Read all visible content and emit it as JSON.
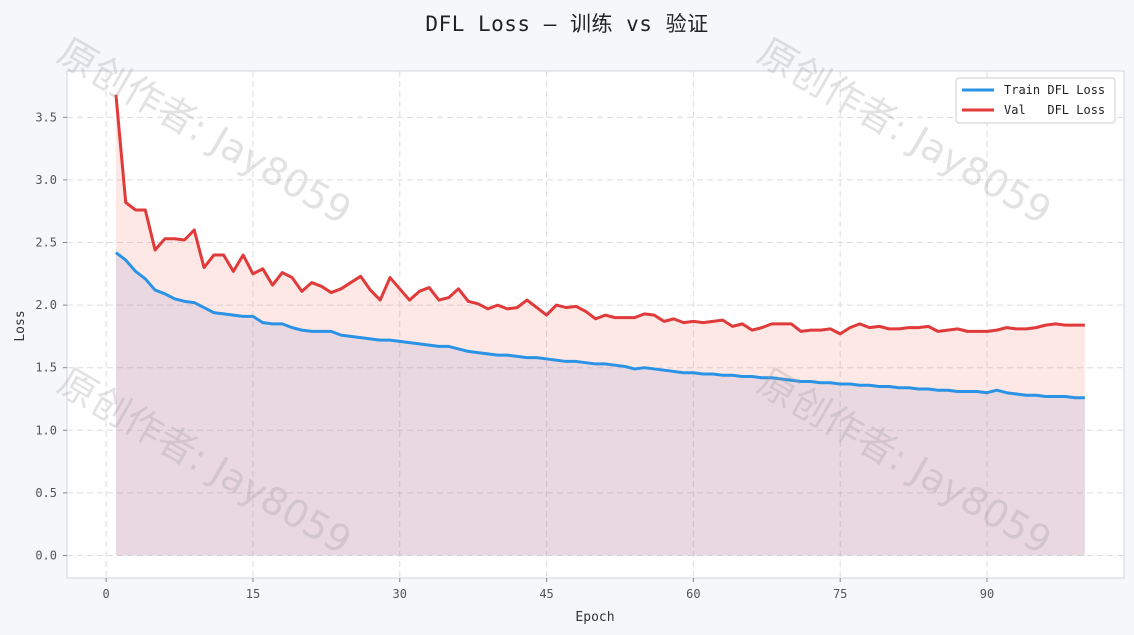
{
  "chart_data": {
    "type": "line",
    "title": "DFL Loss — 训练 vs 验证",
    "xlabel": "Epoch",
    "ylabel": "Loss",
    "xlim": [
      -4,
      104
    ],
    "ylim": [
      -0.18,
      3.87
    ],
    "xticks": [
      0,
      15,
      30,
      45,
      60,
      75,
      90
    ],
    "yticks": [
      0.0,
      0.5,
      1.0,
      1.5,
      2.0,
      2.5,
      3.0,
      3.5
    ],
    "grid": true,
    "legend_position": "top-right",
    "filled_to_zero": true,
    "x": [
      1,
      2,
      3,
      4,
      5,
      6,
      7,
      8,
      9,
      10,
      11,
      12,
      13,
      14,
      15,
      16,
      17,
      18,
      19,
      20,
      21,
      22,
      23,
      24,
      25,
      26,
      27,
      28,
      29,
      30,
      31,
      32,
      33,
      34,
      35,
      36,
      37,
      38,
      39,
      40,
      41,
      42,
      43,
      44,
      45,
      46,
      47,
      48,
      49,
      50,
      51,
      52,
      53,
      54,
      55,
      56,
      57,
      58,
      59,
      60,
      61,
      62,
      63,
      64,
      65,
      66,
      67,
      68,
      69,
      70,
      71,
      72,
      73,
      74,
      75,
      76,
      77,
      78,
      79,
      80,
      81,
      82,
      83,
      84,
      85,
      86,
      87,
      88,
      89,
      90,
      91,
      92,
      93,
      94,
      95,
      96,
      97,
      98,
      99,
      100
    ],
    "series": [
      {
        "name": "Train DFL Loss",
        "color": "#2b93e6",
        "values": [
          2.42,
          2.36,
          2.27,
          2.21,
          2.12,
          2.09,
          2.05,
          2.03,
          2.02,
          1.98,
          1.94,
          1.93,
          1.92,
          1.91,
          1.91,
          1.86,
          1.85,
          1.85,
          1.82,
          1.8,
          1.79,
          1.79,
          1.79,
          1.76,
          1.75,
          1.74,
          1.73,
          1.72,
          1.72,
          1.71,
          1.7,
          1.69,
          1.68,
          1.67,
          1.67,
          1.65,
          1.63,
          1.62,
          1.61,
          1.6,
          1.6,
          1.59,
          1.58,
          1.58,
          1.57,
          1.56,
          1.55,
          1.55,
          1.54,
          1.53,
          1.53,
          1.52,
          1.51,
          1.49,
          1.5,
          1.49,
          1.48,
          1.47,
          1.46,
          1.46,
          1.45,
          1.45,
          1.44,
          1.44,
          1.43,
          1.43,
          1.42,
          1.42,
          1.41,
          1.4,
          1.39,
          1.39,
          1.38,
          1.38,
          1.37,
          1.37,
          1.36,
          1.36,
          1.35,
          1.35,
          1.34,
          1.34,
          1.33,
          1.33,
          1.32,
          1.32,
          1.31,
          1.31,
          1.31,
          1.3,
          1.32,
          1.3,
          1.29,
          1.28,
          1.28,
          1.27,
          1.27,
          1.27,
          1.26,
          1.26
        ]
      },
      {
        "name": "Val   DFL Loss",
        "color": "#e03a3a",
        "values": [
          3.68,
          2.82,
          2.76,
          2.76,
          2.44,
          2.53,
          2.53,
          2.52,
          2.6,
          2.3,
          2.4,
          2.4,
          2.27,
          2.4,
          2.25,
          2.29,
          2.16,
          2.26,
          2.22,
          2.11,
          2.18,
          2.15,
          2.1,
          2.13,
          2.18,
          2.23,
          2.12,
          2.04,
          2.22,
          2.13,
          2.04,
          2.11,
          2.14,
          2.04,
          2.06,
          2.13,
          2.03,
          2.01,
          1.97,
          2.0,
          1.97,
          1.98,
          2.04,
          1.98,
          1.92,
          2.0,
          1.98,
          1.99,
          1.95,
          1.89,
          1.92,
          1.9,
          1.9,
          1.9,
          1.93,
          1.92,
          1.87,
          1.89,
          1.86,
          1.87,
          1.86,
          1.87,
          1.88,
          1.83,
          1.85,
          1.8,
          1.82,
          1.85,
          1.85,
          1.85,
          1.79,
          1.8,
          1.8,
          1.81,
          1.77,
          1.82,
          1.85,
          1.82,
          1.83,
          1.81,
          1.81,
          1.82,
          1.82,
          1.83,
          1.79,
          1.8,
          1.81,
          1.79,
          1.79,
          1.79,
          1.8,
          1.82,
          1.81,
          1.81,
          1.82,
          1.84,
          1.85,
          1.84,
          1.84,
          1.84
        ]
      }
    ]
  },
  "watermark": {
    "text": "原创作者: Jay8059"
  }
}
